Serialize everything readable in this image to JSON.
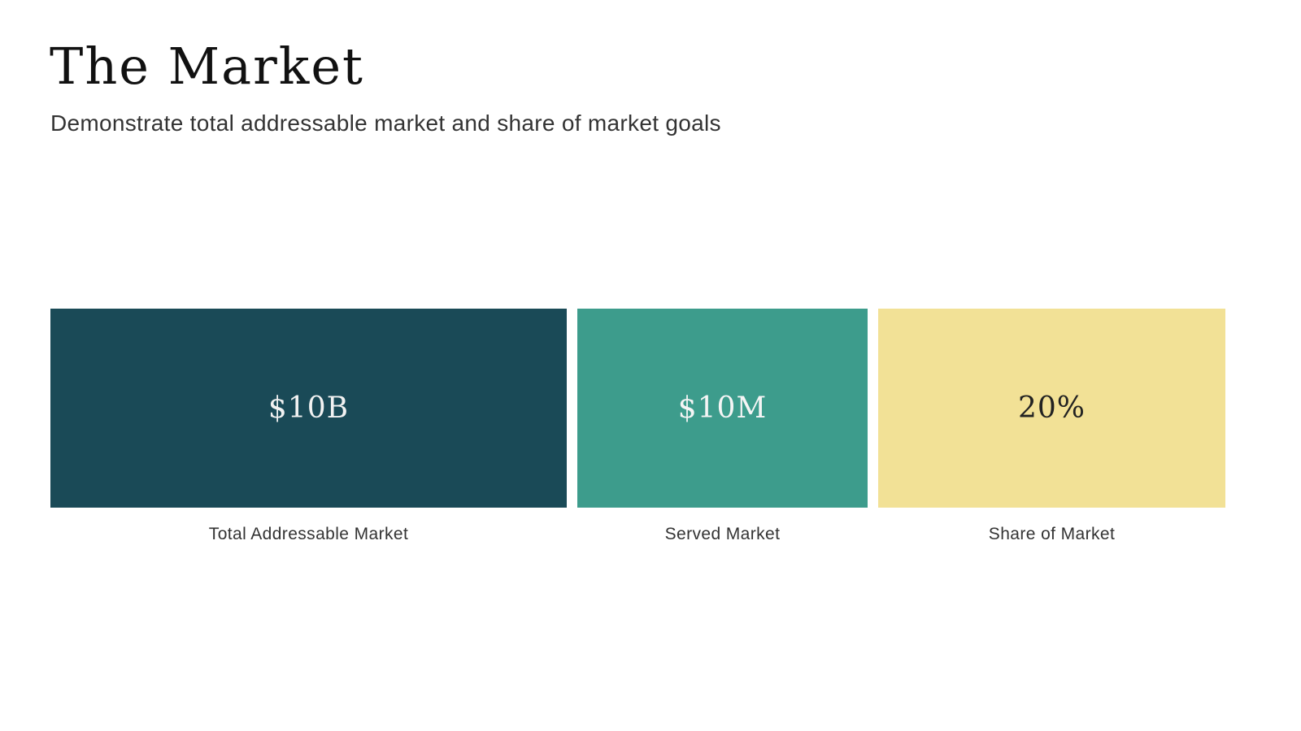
{
  "slide": {
    "title": "The Market",
    "subtitle": "Demonstrate total addressable market and share of market goals"
  },
  "blocks": [
    {
      "value": "$10B",
      "label": "Total Addressable Market",
      "fill": "#1A4A57",
      "text_color": "#F2F2F2"
    },
    {
      "value": "$10M",
      "label": "Served Market",
      "fill": "#3D9C8C",
      "text_color": "#F5F5F5"
    },
    {
      "value": "20%",
      "label": "Share of Market",
      "fill": "#F2E196",
      "text_color": "#222222"
    }
  ],
  "colors": {
    "background": "#FFFFFF",
    "title": "#111111",
    "subtitle": "#333333",
    "label": "#333333"
  }
}
